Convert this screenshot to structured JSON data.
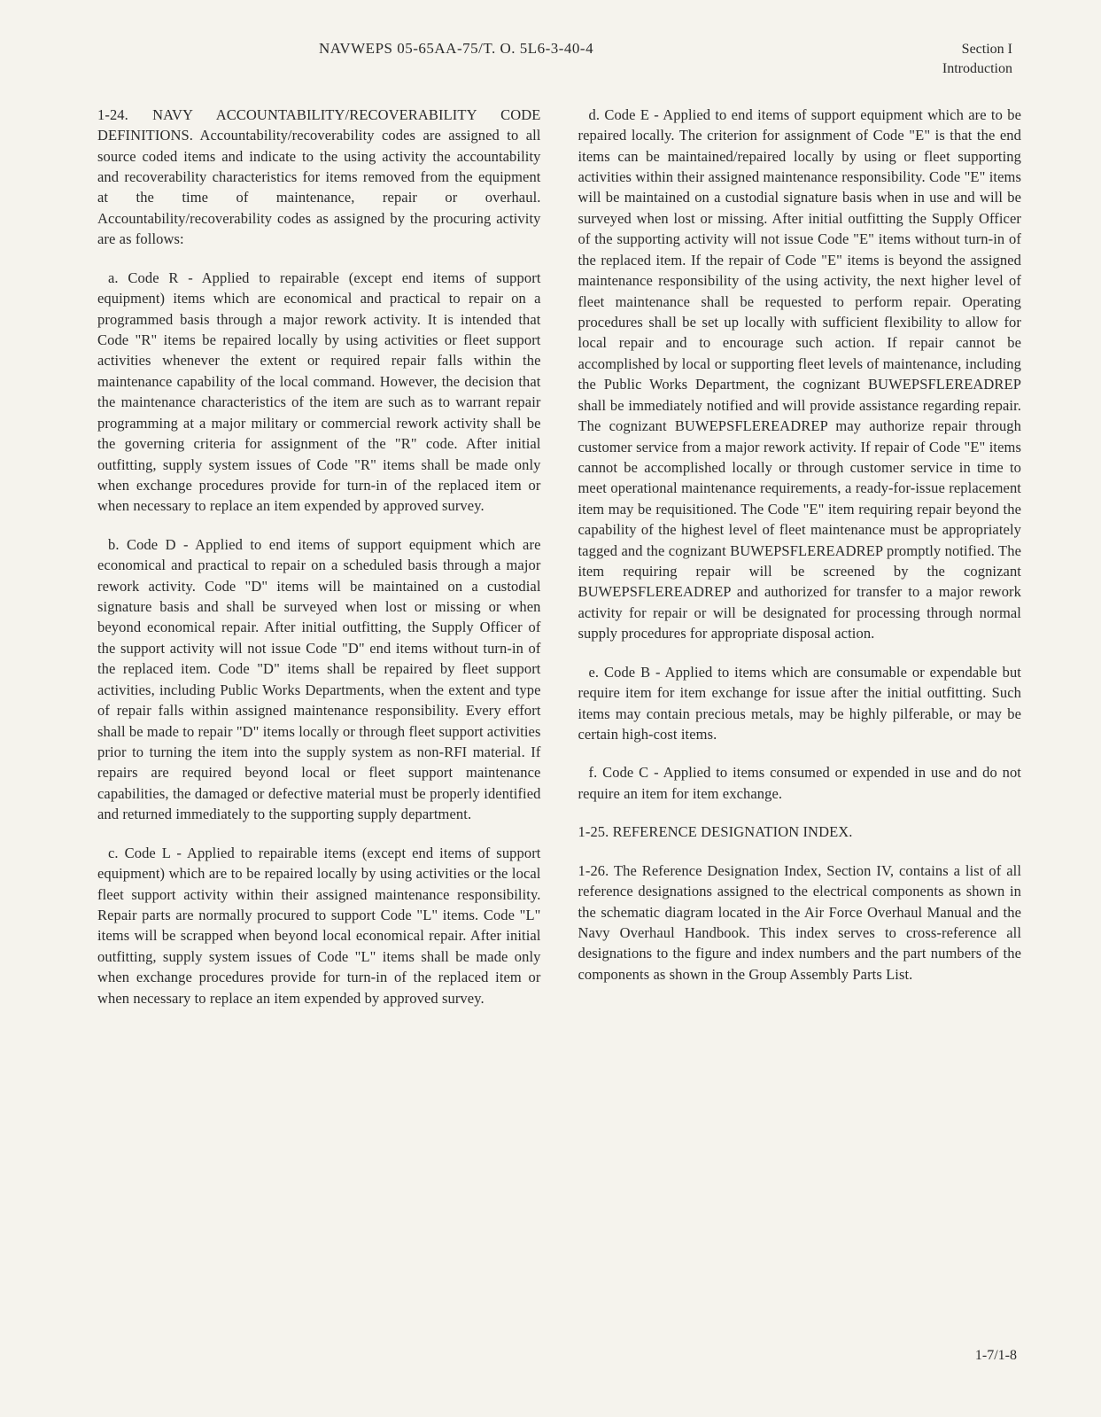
{
  "header": {
    "center": "NAVWEPS 05-65AA-75/T. O. 5L6-3-40-4",
    "rightLine1": "Section I",
    "rightLine2": "Introduction"
  },
  "section124": {
    "intro": "1-24. NAVY ACCOUNTABILITY/RECOVERABILITY CODE DEFINITIONS. Accountability/recoverability codes are assigned to all source coded items and indicate to the using activity the accountability and recoverability characteristics for items removed from the equipment at the time of maintenance, repair or overhaul. Accountability/recoverability codes as assigned by the procuring activity are as follows:",
    "codeR": "a. Code R - Applied to repairable (except end items of support equipment) items which are economical and practical to repair on a programmed basis through a major rework activity. It is intended that Code \"R\" items be repaired locally by using activities or fleet support activities whenever the extent or required repair falls within the maintenance capability of the local command. However, the decision that the maintenance characteristics of the item are such as to warrant repair programming at a major military or commercial rework activity shall be the governing criteria for assignment of the \"R\" code. After initial outfitting, supply system issues of Code \"R\" items shall be made only when exchange procedures provide for turn-in of the replaced item or when necessary to replace an item expended by approved survey.",
    "codeD": "b. Code D - Applied to end items of support equipment which are economical and practical to repair on a scheduled basis through a major rework activity. Code \"D\" items will be maintained on a custodial signature basis and shall be surveyed when lost or missing or when beyond economical repair. After initial outfitting, the Supply Officer of the support activity will not issue Code \"D\" end items without turn-in of the replaced item. Code \"D\" items shall be repaired by fleet support activities, including Public Works Departments, when the extent and type of repair falls within assigned maintenance responsibility. Every effort shall be made to repair \"D\" items locally or through fleet support activities prior to turning the item into the supply system as non-RFI material. If repairs are required beyond local or fleet support maintenance capabilities, the damaged or defective material must be properly identified and returned immediately to the supporting supply department.",
    "codeL": "c. Code L - Applied to repairable items (except end items of support equipment) which are to be repaired locally by using activities or the local fleet support activity within their assigned maintenance responsibility. Repair parts are normally procured to support Code \"L\" items. Code \"L\" items will be scrapped when beyond local economical repair. After initial outfitting, supply system issues of Code \"L\" items shall be made only when exchange procedures provide for turn-in of the replaced item or when necessary to replace an item expended by approved survey.",
    "codeE": "d. Code E - Applied to end items of support equipment which are to be repaired locally. The criterion for assignment of Code \"E\" is that the end items can be maintained/repaired locally by using or fleet supporting activities within their assigned maintenance responsibility. Code \"E\" items will be maintained on a custodial signature basis when in use and will be surveyed when lost or missing. After initial outfitting the Supply Officer of the supporting activity will not issue Code \"E\" items without turn-in of the replaced item. If the repair of Code \"E\" items is beyond the assigned maintenance responsibility of the using activity, the next higher level of fleet maintenance shall be requested to perform repair. Operating procedures shall be set up locally with sufficient flexibility to allow for local repair and to encourage such action. If repair cannot be accomplished by local or supporting fleet levels of maintenance, including the Public Works Department, the cognizant BUWEPSFLEREADREP shall be immediately notified and will provide assistance regarding repair. The cognizant BUWEPSFLEREADREP may authorize repair through customer service from a major rework activity. If repair of Code \"E\" items cannot be accomplished locally or through customer service in time to meet operational maintenance requirements, a ready-for-issue replacement item may be requisitioned. The Code \"E\" item requiring repair beyond the capability of the highest level of fleet maintenance must be appropriately tagged and the cognizant BUWEPSFLEREADREP promptly notified. The item requiring repair will be screened by the cognizant BUWEPSFLEREADREP and authorized for transfer to a major rework activity for repair or will be designated for processing through normal supply procedures for appropriate disposal action.",
    "codeB": "e. Code B - Applied to items which are consumable or expendable but require item for item exchange for issue after the initial outfitting. Such items may contain precious metals, may be highly pilferable, or may be certain high-cost items.",
    "codeC": "f. Code C - Applied to items consumed or expended in use and do not require an item for item exchange."
  },
  "section125": {
    "title": "1-25. REFERENCE DESIGNATION INDEX."
  },
  "section126": {
    "text": "1-26. The Reference Designation Index, Section IV, contains a list of all reference designations assigned to the electrical components as shown in the schematic diagram located in the Air Force Overhaul Manual and the Navy Overhaul Handbook. This index serves to cross-reference all designations to the figure and index numbers and the part numbers of the components as shown in the Group Assembly Parts List."
  },
  "pageNumber": "1-7/1-8",
  "colors": {
    "background": "#f5f3ed",
    "text": "#2a2a2a"
  },
  "typography": {
    "bodyFontSize": 16.5,
    "headerFontSize": 17,
    "lineHeight": 1.42,
    "fontFamily": "Times New Roman"
  }
}
